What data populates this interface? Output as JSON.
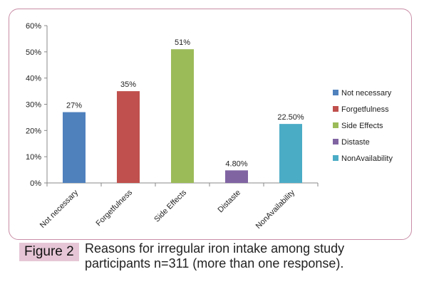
{
  "chart_data": {
    "type": "bar",
    "categories": [
      "Not necessary",
      "Forgetfulness",
      "Side Effects",
      "Distaste",
      "NonAvailability"
    ],
    "values": [
      27,
      35,
      51,
      4.8,
      22.5
    ],
    "data_labels": [
      "27%",
      "35%",
      "51%",
      "4.80%",
      "22.50%"
    ],
    "colors": [
      "#4f81bd",
      "#c0504d",
      "#9bbb59",
      "#8064a2",
      "#4bacc6"
    ],
    "ylim": [
      0,
      60
    ],
    "yticks": [
      "0%",
      "10%",
      "20%",
      "30%",
      "40%",
      "50%",
      "60%"
    ],
    "legend": [
      "Not necessary",
      "Forgetfulness",
      "Side Effects",
      "Distaste",
      "NonAvailability"
    ],
    "legend_position": "right",
    "grid": false
  },
  "caption": {
    "label": "Figure 2",
    "text": "Reasons for irregular iron intake among study participants n=311 (more than one response)."
  }
}
